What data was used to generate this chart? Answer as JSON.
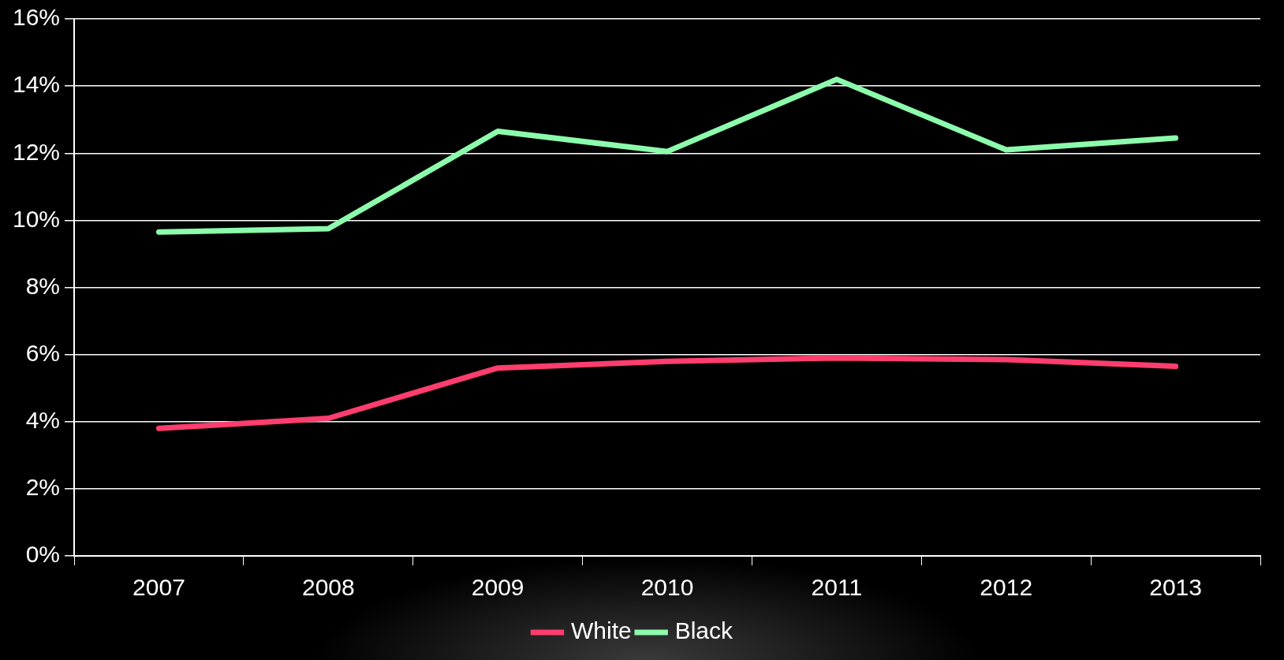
{
  "chart_data": {
    "type": "line",
    "categories": [
      "2007",
      "2008",
      "2009",
      "2010",
      "2011",
      "2012",
      "2013"
    ],
    "series": [
      {
        "name": "White",
        "color": "#ff3d6e",
        "values": [
          3.8,
          4.1,
          5.6,
          5.8,
          5.9,
          5.85,
          5.65
        ]
      },
      {
        "name": "Black",
        "color": "#8cfcac",
        "values": [
          9.65,
          9.75,
          12.65,
          12.05,
          14.2,
          12.1,
          12.45
        ]
      }
    ],
    "ylim": [
      0,
      16
    ],
    "yticks": [
      {
        "value": 0,
        "label": "0%"
      },
      {
        "value": 2,
        "label": "2%"
      },
      {
        "value": 4,
        "label": "4%"
      },
      {
        "value": 6,
        "label": "6%"
      },
      {
        "value": 8,
        "label": "8%"
      },
      {
        "value": 10,
        "label": "10%"
      },
      {
        "value": 12,
        "label": "12%"
      },
      {
        "value": 14,
        "label": "14%"
      },
      {
        "value": 16,
        "label": "16%"
      }
    ],
    "grid": "y",
    "legend": "bottom",
    "marker": "none",
    "line_style": "solid"
  }
}
